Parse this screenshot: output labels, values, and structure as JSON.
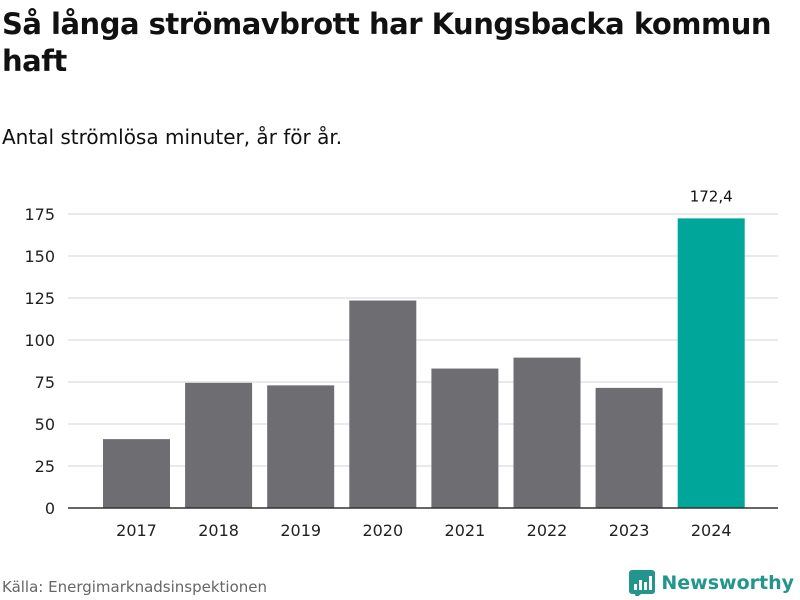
{
  "title": "Så långa strömavbrott har Kungsbacka kommun haft",
  "subtitle": "Antal strömlösa minuter, år för år.",
  "source": "Källa: Energimarknadsinspektionen",
  "brand": {
    "name": "Newsworthy",
    "logo_icon": "bar-chart-logo-icon",
    "color": "#22968c"
  },
  "colors": {
    "default_bar": "#6e6d72",
    "highlight_bar": "#00a699",
    "grid": "#d6d6d6",
    "axis": "#333333"
  },
  "chart_data": {
    "type": "bar",
    "title": "Så långa strömavbrott har Kungsbacka kommun haft",
    "subtitle": "Antal strömlösa minuter, år för år.",
    "xlabel": "",
    "ylabel": "",
    "categories": [
      "2017",
      "2018",
      "2019",
      "2020",
      "2021",
      "2022",
      "2023",
      "2024"
    ],
    "values": [
      41,
      74.5,
      73,
      123.5,
      83,
      89.5,
      71.5,
      172.4
    ],
    "highlight_index": 7,
    "data_labels": [
      {
        "index": 7,
        "text": "172,4"
      }
    ],
    "yticks": [
      0,
      25,
      50,
      75,
      100,
      125,
      150,
      175
    ],
    "ytick_labels": [
      "0",
      "25",
      "50",
      "75",
      "100",
      "125",
      "150",
      "175"
    ],
    "ylim": [
      0,
      175
    ],
    "grid": true,
    "legend": "none"
  }
}
